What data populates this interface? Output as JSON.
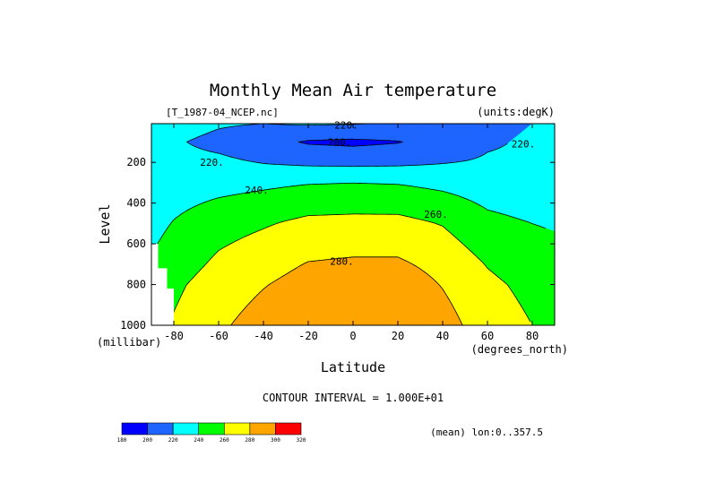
{
  "chart_data": {
    "type": "contour",
    "title": "Monthly Mean Air temperature",
    "source_label": "[T_1987-04_NCEP.nc]",
    "units_label": "(units:degK)",
    "xlabel": "Latitude",
    "x_units_label": "(degrees_north)",
    "ylabel": "Level",
    "y_units_label": "(millibar)",
    "xlim": [
      -90,
      90
    ],
    "ylim": [
      1000,
      10
    ],
    "x_ticks": [
      -80,
      -60,
      -40,
      -20,
      0,
      20,
      40,
      60,
      80
    ],
    "y_ticks": [
      200,
      400,
      600,
      800,
      1000
    ],
    "contour_interval_text": "CONTOUR INTERVAL = 1.000E+01",
    "footer_note": "(mean) lon:0..357.5",
    "contour_levels": [
      180,
      200,
      220,
      240,
      260,
      280,
      300,
      320
    ],
    "fill_colors": [
      "#0000ff",
      "#1e64ff",
      "#00ffff",
      "#00ff00",
      "#ffff00",
      "#ffa500",
      "#ff0000"
    ],
    "colorbar_labels": [
      "180",
      "200",
      "220",
      "240",
      "260",
      "280",
      "300",
      "320"
    ],
    "contour_labels": [
      {
        "text": "220.",
        "lat": -3,
        "p": 17
      },
      {
        "text": "200.",
        "lat": -6,
        "p": 100
      },
      {
        "text": "220.",
        "lat": 76,
        "p": 110
      },
      {
        "text": "220.",
        "lat": -63,
        "p": 200
      },
      {
        "text": "240.",
        "lat": -43,
        "p": 335
      },
      {
        "text": "260.",
        "lat": 37,
        "p": 455
      },
      {
        "text": "280.",
        "lat": -5,
        "p": 685
      }
    ],
    "field": [
      {
        "lat": -90,
        "p_profile": [
          [
            10,
            230
          ],
          [
            100,
            225
          ],
          [
            300,
            222
          ],
          [
            500,
            234
          ],
          [
            600,
            238
          ],
          [
            650,
            241
          ],
          [
            700,
            244
          ],
          [
            800,
            248
          ],
          [
            1000,
            252
          ]
        ]
      },
      {
        "lat": -80,
        "p_profile": [
          [
            10,
            228
          ],
          [
            100,
            222
          ],
          [
            200,
            225
          ],
          [
            300,
            230
          ],
          [
            500,
            241
          ],
          [
            700,
            250
          ],
          [
            800,
            256
          ],
          [
            1000,
            262
          ]
        ]
      },
      {
        "lat": -60,
        "p_profile": [
          [
            10,
            222
          ],
          [
            100,
            215
          ],
          [
            200,
            224
          ],
          [
            300,
            233
          ],
          [
            500,
            252
          ],
          [
            700,
            264
          ],
          [
            800,
            270
          ],
          [
            1000,
            277
          ]
        ]
      },
      {
        "lat": -40,
        "p_profile": [
          [
            10,
            220
          ],
          [
            100,
            207
          ],
          [
            200,
            219
          ],
          [
            300,
            236
          ],
          [
            500,
            258
          ],
          [
            700,
            273
          ],
          [
            800,
            279
          ],
          [
            1000,
            288
          ]
        ]
      },
      {
        "lat": -20,
        "p_profile": [
          [
            10,
            222
          ],
          [
            100,
            198
          ],
          [
            200,
            216
          ],
          [
            300,
            239
          ],
          [
            500,
            265
          ],
          [
            700,
            281
          ],
          [
            800,
            287
          ],
          [
            1000,
            297
          ]
        ]
      },
      {
        "lat": 0,
        "p_profile": [
          [
            10,
            221
          ],
          [
            100,
            196
          ],
          [
            200,
            215
          ],
          [
            300,
            240
          ],
          [
            500,
            266
          ],
          [
            700,
            283
          ],
          [
            800,
            289
          ],
          [
            1000,
            298
          ]
        ]
      },
      {
        "lat": 20,
        "p_profile": [
          [
            10,
            218
          ],
          [
            100,
            199
          ],
          [
            200,
            216
          ],
          [
            300,
            239
          ],
          [
            500,
            266
          ],
          [
            700,
            283
          ],
          [
            800,
            291
          ],
          [
            1000,
            299
          ]
        ]
      },
      {
        "lat": 40,
        "p_profile": [
          [
            10,
            214
          ],
          [
            100,
            208
          ],
          [
            200,
            219
          ],
          [
            300,
            235
          ],
          [
            500,
            259
          ],
          [
            700,
            274
          ],
          [
            800,
            279
          ],
          [
            1000,
            288
          ]
        ]
      },
      {
        "lat": 60,
        "p_profile": [
          [
            10,
            216
          ],
          [
            100,
            218
          ],
          [
            200,
            222
          ],
          [
            300,
            230
          ],
          [
            500,
            245
          ],
          [
            700,
            259
          ],
          [
            800,
            264
          ],
          [
            1000,
            270
          ]
        ]
      },
      {
        "lat": 80,
        "p_profile": [
          [
            10,
            220
          ],
          [
            100,
            222
          ],
          [
            200,
            223
          ],
          [
            300,
            227
          ],
          [
            500,
            240
          ],
          [
            700,
            250
          ],
          [
            800,
            255
          ],
          [
            1000,
            260
          ]
        ]
      },
      {
        "lat": 90,
        "p_profile": [
          [
            10,
            221
          ],
          [
            100,
            223
          ],
          [
            200,
            223
          ],
          [
            300,
            226
          ],
          [
            500,
            238
          ],
          [
            700,
            248
          ],
          [
            800,
            253
          ],
          [
            1000,
            258
          ]
        ]
      }
    ],
    "missing_regions": [
      {
        "lat_from": -90,
        "lat_to": -87,
        "p_from": 600,
        "p_to": 1000
      },
      {
        "lat_from": -87,
        "lat_to": -83,
        "p_from": 720,
        "p_to": 1000
      },
      {
        "lat_from": -83,
        "lat_to": -80,
        "p_from": 820,
        "p_to": 1000
      }
    ]
  }
}
